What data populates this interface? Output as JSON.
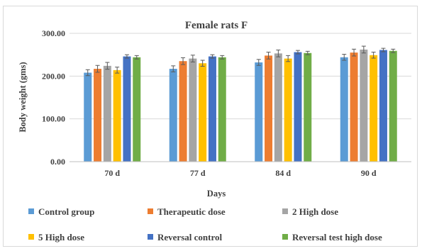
{
  "chart_data": {
    "type": "bar",
    "title": "Female rats F",
    "xlabel": "Days",
    "ylabel": "Body weight (gms)",
    "ylim": [
      0,
      300
    ],
    "yticks": [
      "0.00",
      "100.00",
      "200.00",
      "300.00"
    ],
    "grid": true,
    "legend_position": "bottom",
    "categories": [
      "70 d",
      "77 d",
      "84 d",
      "90 d"
    ],
    "series": [
      {
        "name": "Control group",
        "color": "#5B9BD5",
        "values": [
          208,
          217,
          232,
          244
        ],
        "errors": [
          7,
          7,
          7,
          7
        ]
      },
      {
        "name": "Therapeutic dose",
        "color": "#ED7D31",
        "values": [
          217,
          235,
          248,
          255
        ],
        "errors": [
          8,
          8,
          8,
          8
        ]
      },
      {
        "name": "2 High dose",
        "color": "#A5A5A5",
        "values": [
          224,
          241,
          253,
          262
        ],
        "errors": [
          8,
          8,
          8,
          8
        ]
      },
      {
        "name": "5 High dose",
        "color": "#FFC000",
        "values": [
          214,
          230,
          241,
          249
        ],
        "errors": [
          7,
          7,
          7,
          7
        ]
      },
      {
        "name": "Reversal control",
        "color": "#4472C4",
        "values": [
          246,
          246,
          256,
          261
        ],
        "errors": [
          4,
          4,
          4,
          4
        ]
      },
      {
        "name": "Reversal test high dose",
        "color": "#70AD47",
        "values": [
          244,
          244,
          254,
          259
        ],
        "errors": [
          4,
          4,
          4,
          4
        ]
      }
    ]
  }
}
